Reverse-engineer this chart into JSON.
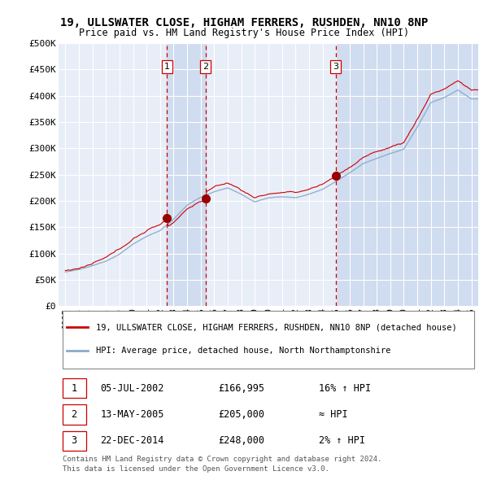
{
  "title": "19, ULLSWATER CLOSE, HIGHAM FERRERS, RUSHDEN, NN10 8NP",
  "subtitle": "Price paid vs. HM Land Registry's House Price Index (HPI)",
  "legend_line1": "19, ULLSWATER CLOSE, HIGHAM FERRERS, RUSHDEN, NN10 8NP (detached house)",
  "legend_line2": "HPI: Average price, detached house, North Northamptonshire",
  "footer1": "Contains HM Land Registry data © Crown copyright and database right 2024.",
  "footer2": "This data is licensed under the Open Government Licence v3.0.",
  "sales": [
    {
      "num": 1,
      "date": "05-JUL-2002",
      "price": 166995,
      "x": 2002.51,
      "note": "16% ↑ HPI"
    },
    {
      "num": 2,
      "date": "13-MAY-2005",
      "price": 205000,
      "x": 2005.36,
      "note": "≈ HPI"
    },
    {
      "num": 3,
      "date": "22-DEC-2014",
      "price": 248000,
      "x": 2014.97,
      "note": "2% ↑ HPI"
    }
  ],
  "ylim": [
    0,
    500000
  ],
  "xlim": [
    1994.5,
    2025.5
  ],
  "yticks": [
    0,
    50000,
    100000,
    150000,
    200000,
    250000,
    300000,
    350000,
    400000,
    450000,
    500000
  ],
  "ytick_labels": [
    "£0",
    "£50K",
    "£100K",
    "£150K",
    "£200K",
    "£250K",
    "£300K",
    "£350K",
    "£400K",
    "£450K",
    "£500K"
  ],
  "xticks": [
    1995,
    1996,
    1997,
    1998,
    1999,
    2000,
    2001,
    2002,
    2003,
    2004,
    2005,
    2006,
    2007,
    2008,
    2009,
    2010,
    2011,
    2012,
    2013,
    2014,
    2015,
    2016,
    2017,
    2018,
    2019,
    2020,
    2021,
    2022,
    2023,
    2024,
    2025
  ],
  "background_color": "#ffffff",
  "plot_bg_color": "#e8eef8",
  "grid_color": "#ffffff",
  "red_line_color": "#cc0000",
  "blue_line_color": "#88aacc",
  "sale_marker_color": "#990000",
  "dashed_line_color": "#cc0000",
  "shade_color": "#d0dcf0",
  "hpi_values": [
    65000,
    69000,
    76000,
    85000,
    99000,
    118000,
    133000,
    144000,
    165000,
    192000,
    207000,
    218000,
    225000,
    213000,
    198000,
    206000,
    208000,
    206000,
    213000,
    222000,
    238000,
    254000,
    272000,
    282000,
    292000,
    300000,
    342000,
    388000,
    398000,
    412000,
    395000
  ]
}
